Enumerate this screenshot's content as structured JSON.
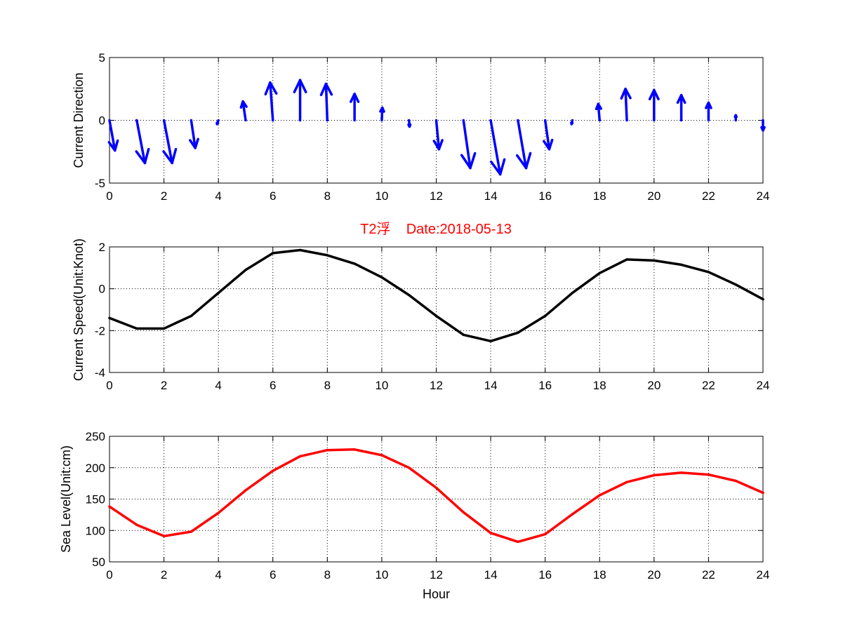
{
  "figure": {
    "title": "T2浮    Date:2018-05-13"
  },
  "chart_data": [
    {
      "type": "quiver",
      "ylabel": "Current Direction",
      "xlim": [
        0,
        24
      ],
      "ylim": [
        -5,
        5
      ],
      "xticks": [
        0,
        2,
        4,
        6,
        8,
        10,
        12,
        14,
        16,
        18,
        20,
        22,
        24
      ],
      "yticks": [
        -5,
        0,
        5
      ],
      "grid": true,
      "x": [
        0,
        1,
        2,
        3,
        4,
        5,
        6,
        7,
        8,
        9,
        10,
        11,
        12,
        13,
        14,
        15,
        16,
        17,
        18,
        19,
        20,
        21,
        22,
        23,
        24
      ],
      "u": [
        0.2,
        0.3,
        0.3,
        0.15,
        -0.05,
        -0.1,
        -0.1,
        0.0,
        -0.05,
        0.0,
        0.02,
        0.02,
        0.1,
        0.25,
        0.35,
        0.3,
        0.15,
        -0.03,
        -0.05,
        -0.05,
        0.0,
        0.0,
        0.0,
        0.0,
        0.0
      ],
      "v": [
        -2.4,
        -3.4,
        -3.4,
        -2.2,
        -0.3,
        1.5,
        3.0,
        3.2,
        2.9,
        2.1,
        1.0,
        -0.5,
        -2.3,
        -3.8,
        -4.3,
        -3.8,
        -2.3,
        -0.3,
        1.3,
        2.5,
        2.4,
        2.0,
        1.4,
        0.4,
        -0.8
      ],
      "color": "#0000FF"
    },
    {
      "type": "line",
      "ylabel": "Current Speed(Unit:Knot)",
      "xlim": [
        0,
        24
      ],
      "ylim": [
        -4,
        2
      ],
      "xticks": [
        0,
        2,
        4,
        6,
        8,
        10,
        12,
        14,
        16,
        18,
        20,
        22,
        24
      ],
      "yticks": [
        -4,
        -2,
        0,
        2
      ],
      "grid": true,
      "x": [
        0,
        1,
        2,
        3,
        4,
        5,
        6,
        7,
        8,
        9,
        10,
        11,
        12,
        13,
        14,
        15,
        16,
        17,
        18,
        19,
        20,
        21,
        22,
        23,
        24
      ],
      "series": [
        {
          "values": [
            -1.4,
            -1.9,
            -1.9,
            -1.3,
            -0.2,
            0.9,
            1.7,
            1.85,
            1.6,
            1.2,
            0.55,
            -0.3,
            -1.3,
            -2.2,
            -2.5,
            -2.1,
            -1.3,
            -0.2,
            0.75,
            1.4,
            1.35,
            1.15,
            0.8,
            0.2,
            -0.5
          ],
          "color": "#000000"
        }
      ]
    },
    {
      "type": "line",
      "xlabel": "Hour",
      "ylabel": "Sea Level(Unit:cm)",
      "xlim": [
        0,
        24
      ],
      "ylim": [
        50,
        250
      ],
      "xticks": [
        0,
        2,
        4,
        6,
        8,
        10,
        12,
        14,
        16,
        18,
        20,
        22,
        24
      ],
      "yticks": [
        50,
        100,
        150,
        200,
        250
      ],
      "grid": true,
      "x": [
        0,
        1,
        2,
        3,
        4,
        5,
        6,
        7,
        8,
        9,
        10,
        11,
        12,
        13,
        14,
        15,
        16,
        17,
        18,
        19,
        20,
        21,
        22,
        23,
        24
      ],
      "series": [
        {
          "values": [
            138,
            109,
            91,
            98,
            128,
            164,
            195,
            218,
            228,
            229,
            220,
            200,
            168,
            129,
            96,
            82,
            94,
            126,
            156,
            177,
            188,
            192,
            189,
            179,
            160
          ],
          "color": "#FF0000"
        }
      ]
    }
  ]
}
